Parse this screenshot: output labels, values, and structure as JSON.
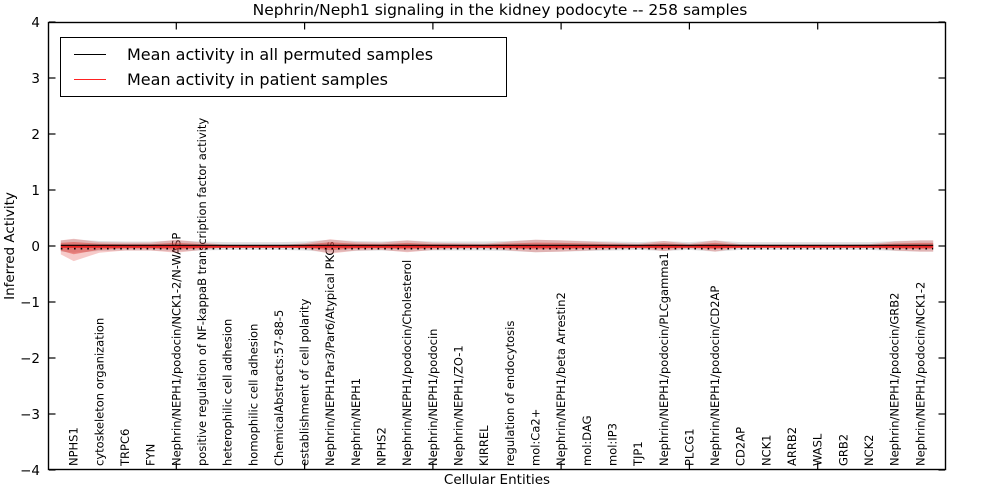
{
  "chart_data": {
    "type": "area",
    "title": "Nephrin/Neph1 signaling in the kidney podocyte -- 258 samples",
    "xlabel": "Cellular Entities",
    "ylabel": "Inferred Activity",
    "ylim": [
      -4,
      4
    ],
    "xlim": [
      0,
      35
    ],
    "grid": false,
    "legend_position": "upper left",
    "yticks": {
      "values": [
        4,
        3,
        2,
        1,
        0,
        -1,
        -2,
        -3,
        -4
      ],
      "labels": [
        "4",
        "3",
        "2",
        "1",
        "0",
        "−1",
        "−2",
        "−3",
        "−4"
      ]
    },
    "xticks": [
      5,
      10,
      15,
      20,
      25,
      30
    ],
    "categories": [
      "NPHS1",
      "cytoskeleton organization",
      "TRPC6",
      "FYN",
      "Nephrin/NEPH1/podocin/NCK1-2/N-WASP",
      "positive regulation of NF-kappaB transcription factor activity",
      "heterophilic cell adhesion",
      "homophilic cell adhesion",
      "ChemicalAbstracts:57-88-5",
      "establishment of cell polarity",
      "Nephrin/NEPH1Par3/Par6/Atypical PKCs",
      "Nephrin/NEPH1",
      "NPHS2",
      "Nephrin/NEPH1/podocin/Cholesterol",
      "Nephrin/NEPH1/podocin",
      "Nephrin/NEPH1/ZO-1",
      "KIRREL",
      "regulation of endocytosis",
      "mol:Ca2+",
      "Nephrin/NEPH1/beta Arrestin2",
      "mol:DAG",
      "mol:IP3",
      "TJP1",
      "Nephrin/NEPH1/podocin/PLCgamma1",
      "PLCG1",
      "Nephrin/NEPH1/podocin/CD2AP",
      "CD2AP",
      "NCK1",
      "ARRB2",
      "WASL",
      "GRB2",
      "NCK2",
      "Nephrin/NEPH1/podocin/GRB2",
      "Nephrin/NEPH1/podocin/NCK1-2"
    ],
    "series": [
      {
        "name": "Mean activity in all permuted samples",
        "mean": 0.0
      },
      {
        "name": "Mean activity in patient samples",
        "mean": 0.02
      }
    ],
    "band": {
      "x": [
        0.5,
        1,
        2,
        3,
        4,
        5,
        6,
        7,
        8,
        9,
        10,
        11,
        12,
        13,
        14,
        15,
        16,
        17,
        18,
        19,
        20,
        21,
        22,
        23,
        24,
        25,
        26,
        27,
        28,
        29,
        30,
        31,
        32,
        33,
        34,
        34.5
      ],
      "red_hi": [
        0.1,
        0.13,
        0.07,
        0.06,
        0.06,
        0.11,
        0.06,
        0.02,
        0.015,
        0.015,
        0.05,
        0.12,
        0.07,
        0.06,
        0.1,
        0.06,
        0.05,
        0.04,
        0.08,
        0.11,
        0.1,
        0.08,
        0.06,
        0.04,
        0.09,
        0.04,
        0.1,
        0.03,
        0.025,
        0.025,
        0.025,
        0.025,
        0.03,
        0.08,
        0.1,
        0.1
      ],
      "red_lo": [
        0.15,
        0.27,
        0.12,
        0.08,
        0.08,
        0.12,
        0.07,
        0.02,
        0.015,
        0.015,
        0.05,
        0.14,
        0.08,
        0.07,
        0.11,
        0.07,
        0.05,
        0.04,
        0.08,
        0.11,
        0.1,
        0.08,
        0.06,
        0.04,
        0.09,
        0.04,
        0.1,
        0.03,
        0.025,
        0.025,
        0.025,
        0.025,
        0.03,
        0.08,
        0.1,
        0.1
      ],
      "gray": [
        0.1,
        0.12,
        0.09,
        0.08,
        0.08,
        0.1,
        0.08,
        0.07,
        0.07,
        0.07,
        0.08,
        0.11,
        0.09,
        0.08,
        0.1,
        0.08,
        0.08,
        0.08,
        0.09,
        0.11,
        0.1,
        0.09,
        0.08,
        0.07,
        0.09,
        0.07,
        0.1,
        0.07,
        0.07,
        0.07,
        0.07,
        0.07,
        0.07,
        0.09,
        0.1,
        0.1
      ]
    },
    "legend": {
      "items": [
        {
          "label": "Mean activity in all permuted samples",
          "color": "#000000"
        },
        {
          "label": "Mean activity in patient samples",
          "color": "#ff2222"
        }
      ]
    },
    "colors": {
      "permuted_line": "#000000",
      "patient_line": "#e62222",
      "red_band_outer": "rgba(225,50,45,0.26)",
      "red_band_inner": "rgba(225,50,45,0.45)",
      "gray_band": "rgba(125,125,135,0.24)",
      "axis": "#000000"
    }
  }
}
